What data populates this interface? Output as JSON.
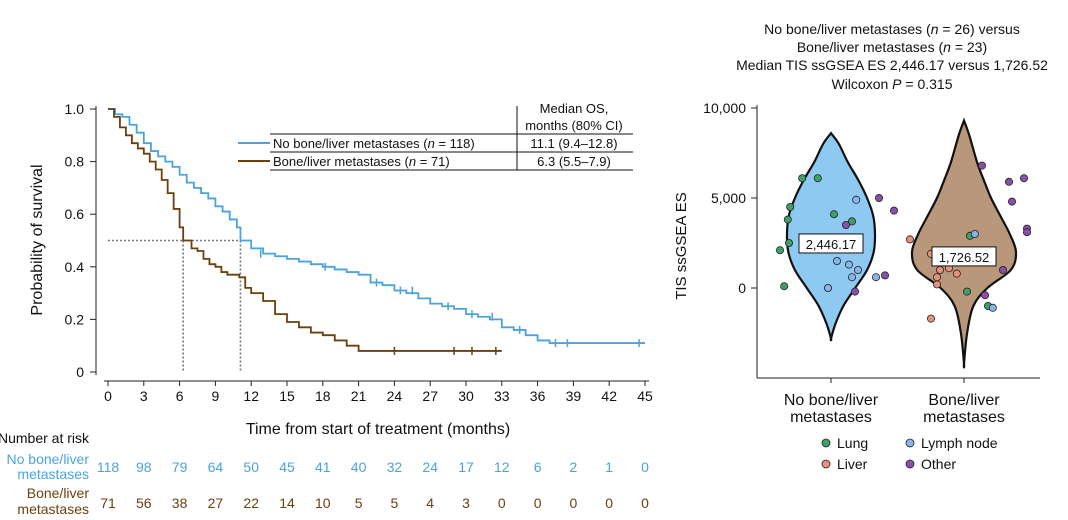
{
  "colors": {
    "group_a": "#4aa3df",
    "group_b": "#6b3f0e",
    "violin_a": "#8ec9f2",
    "violin_b": "#b8977a",
    "lung": "#3f9e6a",
    "liver": "#e8907a",
    "lymph": "#8ab4f0",
    "other": "#8a4fa8",
    "axis": "#222222",
    "dotted": "#777777"
  },
  "chart_data": [
    {
      "type": "line",
      "subtype": "kaplan-meier",
      "xlabel": "Time from start of treatment (months)",
      "ylabel": "Probability of survival",
      "xlim": [
        0,
        45
      ],
      "ylim": [
        0,
        1.0
      ],
      "xticks": [
        "0",
        "3",
        "6",
        "9",
        "12",
        "15",
        "18",
        "21",
        "24",
        "27",
        "30",
        "33",
        "36",
        "39",
        "42",
        "45"
      ],
      "yticks": [
        "0",
        "0.2",
        "0.4",
        "0.6",
        "0.8",
        "1.0"
      ],
      "legend_header": [
        "Median OS,",
        "months (80% CI)"
      ],
      "series": [
        {
          "name": "No bone/liver metastases (n = 118)",
          "label_pre": "No bone/liver metastases (",
          "label_n": "n",
          "label_post": " = 118)",
          "median": "11.1 (9.4–12.8)",
          "median_value": 11.1,
          "points": [
            [
              0,
              1.0
            ],
            [
              0.6,
              0.98
            ],
            [
              1.2,
              0.97
            ],
            [
              1.8,
              0.94
            ],
            [
              2.4,
              0.91
            ],
            [
              3,
              0.87
            ],
            [
              3.6,
              0.84
            ],
            [
              4.2,
              0.82
            ],
            [
              4.8,
              0.8
            ],
            [
              5.4,
              0.78
            ],
            [
              6,
              0.75
            ],
            [
              6.6,
              0.72
            ],
            [
              7.2,
              0.7
            ],
            [
              7.8,
              0.68
            ],
            [
              8.4,
              0.66
            ],
            [
              9,
              0.63
            ],
            [
              9.6,
              0.61
            ],
            [
              10.2,
              0.58
            ],
            [
              10.8,
              0.55
            ],
            [
              11.1,
              0.5
            ],
            [
              12,
              0.47
            ],
            [
              13,
              0.45
            ],
            [
              14,
              0.44
            ],
            [
              15,
              0.43
            ],
            [
              16,
              0.42
            ],
            [
              17,
              0.41
            ],
            [
              18,
              0.4
            ],
            [
              19,
              0.39
            ],
            [
              20,
              0.38
            ],
            [
              21,
              0.37
            ],
            [
              22,
              0.34
            ],
            [
              23,
              0.33
            ],
            [
              24,
              0.31
            ],
            [
              25,
              0.3
            ],
            [
              26,
              0.28
            ],
            [
              27,
              0.26
            ],
            [
              28,
              0.25
            ],
            [
              29,
              0.24
            ],
            [
              30,
              0.22
            ],
            [
              31,
              0.21
            ],
            [
              32,
              0.2
            ],
            [
              33,
              0.17
            ],
            [
              34,
              0.16
            ],
            [
              35,
              0.14
            ],
            [
              36,
              0.12
            ],
            [
              37,
              0.11
            ],
            [
              45,
              0.11
            ]
          ],
          "censors": [
            [
              12.8,
              0.45
            ],
            [
              18.2,
              0.4
            ],
            [
              22.5,
              0.34
            ],
            [
              24.5,
              0.31
            ],
            [
              25.5,
              0.31
            ],
            [
              28.5,
              0.25
            ],
            [
              30.5,
              0.22
            ],
            [
              32.2,
              0.21
            ],
            [
              34.5,
              0.16
            ],
            [
              37.5,
              0.11
            ],
            [
              38.5,
              0.11
            ],
            [
              44.5,
              0.11
            ]
          ],
          "risk": [
            "118",
            "98",
            "79",
            "64",
            "50",
            "45",
            "41",
            "40",
            "32",
            "24",
            "17",
            "12",
            "6",
            "2",
            "1",
            "0"
          ]
        },
        {
          "name": "Bone/liver metastases (n = 71)",
          "label_pre": "Bone/liver metastases (",
          "label_n": "n",
          "label_post": " = 71)",
          "median": "6.3 (5.5–7.9)",
          "median_value": 6.3,
          "points": [
            [
              0,
              1.0
            ],
            [
              0.5,
              0.97
            ],
            [
              1,
              0.93
            ],
            [
              1.5,
              0.9
            ],
            [
              2,
              0.87
            ],
            [
              2.5,
              0.85
            ],
            [
              3,
              0.83
            ],
            [
              3.5,
              0.8
            ],
            [
              4,
              0.77
            ],
            [
              4.5,
              0.73
            ],
            [
              5,
              0.68
            ],
            [
              5.5,
              0.62
            ],
            [
              6,
              0.55
            ],
            [
              6.3,
              0.5
            ],
            [
              7,
              0.47
            ],
            [
              7.5,
              0.46
            ],
            [
              8,
              0.43
            ],
            [
              8.5,
              0.41
            ],
            [
              9,
              0.4
            ],
            [
              9.5,
              0.38
            ],
            [
              10,
              0.37
            ],
            [
              11,
              0.36
            ],
            [
              11.5,
              0.32
            ],
            [
              12,
              0.3
            ],
            [
              13,
              0.27
            ],
            [
              14,
              0.22
            ],
            [
              15,
              0.19
            ],
            [
              16,
              0.17
            ],
            [
              17,
              0.15
            ],
            [
              18,
              0.14
            ],
            [
              19,
              0.12
            ],
            [
              20,
              0.1
            ],
            [
              21,
              0.08
            ],
            [
              33,
              0.08
            ]
          ],
          "censors": [
            [
              24,
              0.08
            ],
            [
              29,
              0.08
            ],
            [
              30.5,
              0.08
            ],
            [
              32.5,
              0.08
            ]
          ],
          "risk": [
            "71",
            "56",
            "38",
            "27",
            "22",
            "14",
            "10",
            "5",
            "5",
            "4",
            "3",
            "0",
            "0",
            "0",
            "0",
            "0"
          ]
        }
      ],
      "risk_table_title": "Number at risk",
      "risk_labels": [
        [
          "No bone/liver",
          "metastases"
        ],
        [
          "Bone/liver",
          "metastases"
        ]
      ]
    },
    {
      "type": "violin",
      "ylabel": "TIS ssGSEA ES",
      "yticks": [
        "10,000",
        "5,000",
        "0"
      ],
      "ylim": [
        -4500,
        10000
      ],
      "title_lines": [
        {
          "pre": "No bone/liver metastases (",
          "it": "n",
          "post": " = 26) versus"
        },
        {
          "pre": "Bone/liver metastases (",
          "it": "n",
          "post": " = 23)"
        },
        {
          "pre": "Median TIS ssGSEA ES 2,446.17 versus 1,726.52",
          "it": "",
          "post": ""
        },
        {
          "pre": "Wilcoxon ",
          "it": "P",
          "post": " = 0.315"
        }
      ],
      "categories": [
        [
          "No bone/liver",
          "metastases"
        ],
        [
          "Bone/liver",
          "metastases"
        ]
      ],
      "medians": [
        "2,446.17",
        "1,726.52"
      ],
      "median_values": [
        2446.17,
        1726.52
      ],
      "legend": [
        {
          "label": "Lung",
          "color_key": "lung"
        },
        {
          "label": "Lymph node",
          "color_key": "lymph"
        },
        {
          "label": "Liver",
          "color_key": "liver"
        },
        {
          "label": "Other",
          "color_key": "other"
        }
      ],
      "points": [
        {
          "g": 0,
          "x": -0.48,
          "y": 6100,
          "c": "lung"
        },
        {
          "g": 0,
          "x": -0.22,
          "y": 6100,
          "c": "lung"
        },
        {
          "g": 0,
          "x": -0.68,
          "y": 4500,
          "c": "lung"
        },
        {
          "g": 0,
          "x": -0.72,
          "y": 3800,
          "c": "lung"
        },
        {
          "g": 0,
          "x": 0.05,
          "y": 4100,
          "c": "lung"
        },
        {
          "g": 0,
          "x": -0.85,
          "y": 2100,
          "c": "lung"
        },
        {
          "g": 0,
          "x": -0.7,
          "y": 2500,
          "c": "lung"
        },
        {
          "g": 0,
          "x": -0.78,
          "y": 100,
          "c": "lung"
        },
        {
          "g": 0,
          "x": 0.35,
          "y": 3700,
          "c": "lung"
        },
        {
          "g": 0,
          "x": 0.42,
          "y": 4900,
          "c": "lymph"
        },
        {
          "g": 0,
          "x": 0.3,
          "y": 1300,
          "c": "lymph"
        },
        {
          "g": 0,
          "x": 0.1,
          "y": 1500,
          "c": "lymph"
        },
        {
          "g": 0,
          "x": 0.45,
          "y": 1000,
          "c": "lymph"
        },
        {
          "g": 0,
          "x": 0.35,
          "y": 600,
          "c": "lymph"
        },
        {
          "g": 0,
          "x": -0.05,
          "y": 0,
          "c": "lymph"
        },
        {
          "g": 0,
          "x": 0.75,
          "y": 600,
          "c": "lymph"
        },
        {
          "g": 0,
          "x": 0.9,
          "y": 700,
          "c": "other"
        },
        {
          "g": 0,
          "x": 1.05,
          "y": 4300,
          "c": "other"
        },
        {
          "g": 0,
          "x": 0.8,
          "y": 5000,
          "c": "other"
        },
        {
          "g": 0,
          "x": 0.25,
          "y": 3500,
          "c": "other"
        },
        {
          "g": 0,
          "x": 0.4,
          "y": -200,
          "c": "other"
        },
        {
          "g": 1,
          "x": -0.9,
          "y": 2700,
          "c": "liver"
        },
        {
          "g": 1,
          "x": -0.55,
          "y": 1900,
          "c": "liver"
        },
        {
          "g": 1,
          "x": -0.4,
          "y": 1000,
          "c": "liver"
        },
        {
          "g": 1,
          "x": -0.25,
          "y": 1100,
          "c": "liver"
        },
        {
          "g": 1,
          "x": -0.45,
          "y": 600,
          "c": "liver"
        },
        {
          "g": 1,
          "x": -0.12,
          "y": 800,
          "c": "liver"
        },
        {
          "g": 1,
          "x": -0.45,
          "y": 200,
          "c": "liver"
        },
        {
          "g": 1,
          "x": -0.55,
          "y": -1700,
          "c": "liver"
        },
        {
          "g": 1,
          "x": 0.1,
          "y": 2900,
          "c": "lung"
        },
        {
          "g": 1,
          "x": 0.12,
          "y": 1600,
          "c": "lung"
        },
        {
          "g": 1,
          "x": 0.05,
          "y": -200,
          "c": "lung"
        },
        {
          "g": 1,
          "x": 0.4,
          "y": -1000,
          "c": "lung"
        },
        {
          "g": 1,
          "x": 0.18,
          "y": 3000,
          "c": "lymph"
        },
        {
          "g": 1,
          "x": 0.48,
          "y": -1100,
          "c": "lymph"
        },
        {
          "g": 1,
          "x": 0.3,
          "y": 6800,
          "c": "other"
        },
        {
          "g": 1,
          "x": 0.75,
          "y": 5900,
          "c": "other"
        },
        {
          "g": 1,
          "x": 1.0,
          "y": 6100,
          "c": "other"
        },
        {
          "g": 1,
          "x": 0.8,
          "y": 4800,
          "c": "other"
        },
        {
          "g": 1,
          "x": 1.05,
          "y": 3300,
          "c": "other"
        },
        {
          "g": 1,
          "x": 0.65,
          "y": 1000,
          "c": "other"
        },
        {
          "g": 1,
          "x": 0.35,
          "y": -400,
          "c": "other"
        },
        {
          "g": 1,
          "x": 1.05,
          "y": 3100,
          "c": "other"
        }
      ]
    }
  ]
}
